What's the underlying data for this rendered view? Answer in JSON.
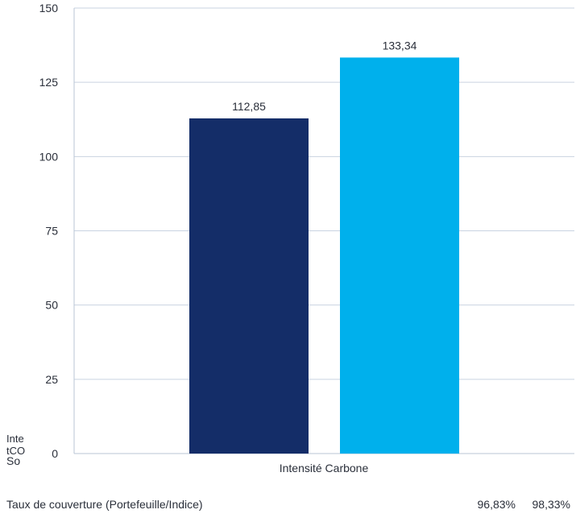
{
  "chart_data": {
    "type": "bar",
    "categories": [
      "Intensité Carbone"
    ],
    "series": [
      {
        "values": [
          112.85
        ],
        "color": "#142d68"
      },
      {
        "values": [
          133.34
        ],
        "color": "#00b0ec"
      }
    ],
    "data_labels": [
      "112,85",
      "133,34"
    ],
    "ylim": [
      0,
      150
    ],
    "yticks": [
      0,
      25,
      50,
      75,
      100,
      125,
      150
    ],
    "grid": true
  },
  "left_labels": {
    "line1": "Inte",
    "line2": "tCO",
    "line3": "So"
  },
  "footer": {
    "label": "Taux de couverture (Portefeuille/Indice)",
    "value1": "96,83%",
    "value2": "98,33%"
  }
}
